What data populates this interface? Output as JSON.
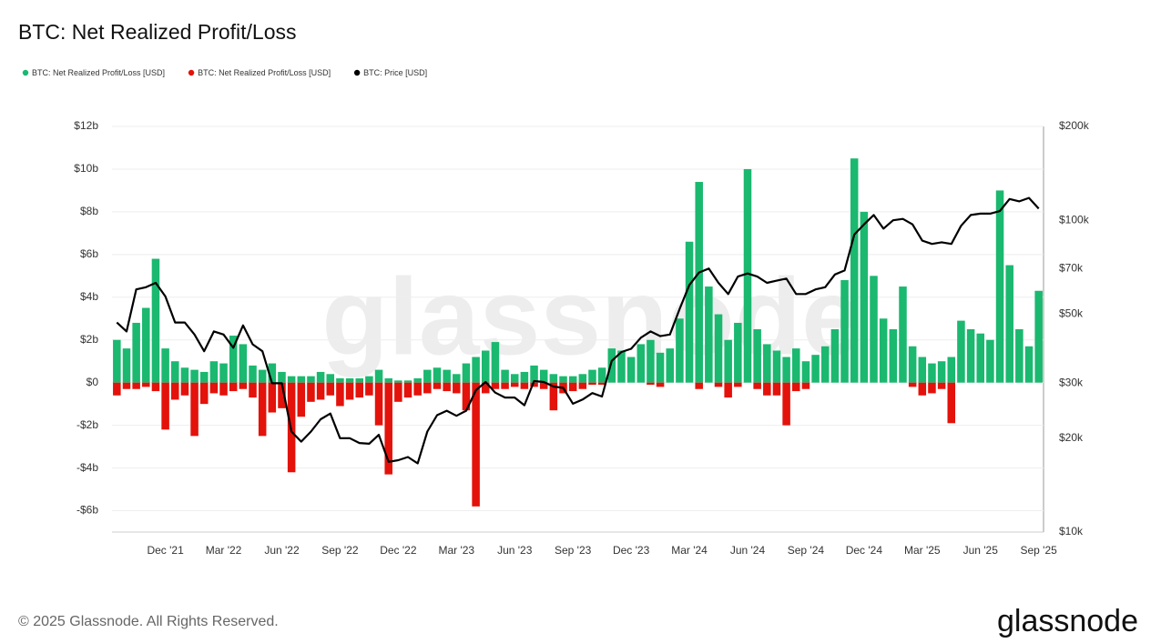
{
  "chart_data": {
    "type": "bar",
    "title": "BTC: Net Realized Profit/Loss",
    "footer": "© 2025 Glassnode. All Rights Reserved.",
    "brand": "glassnode",
    "categories": [
      null,
      null,
      null,
      null,
      null,
      "Dec '21",
      null,
      null,
      null,
      null,
      null,
      "Mar '22",
      null,
      null,
      null,
      null,
      null,
      "Jun '22",
      null,
      null,
      null,
      null,
      null,
      "Sep '22",
      null,
      null,
      null,
      null,
      null,
      "Dec '22",
      null,
      null,
      null,
      null,
      null,
      "Mar '23",
      null,
      null,
      null,
      null,
      null,
      "Jun '23",
      null,
      null,
      null,
      null,
      null,
      "Sep '23",
      null,
      null,
      null,
      null,
      null,
      "Dec '23",
      null,
      null,
      null,
      null,
      null,
      "Mar '24",
      null,
      null,
      null,
      null,
      null,
      "Jun '24",
      null,
      null,
      null,
      null,
      null,
      "Sep '24",
      null,
      null,
      null,
      null,
      null,
      "Dec '24",
      null,
      null,
      null,
      null,
      null,
      "Mar '25",
      null,
      null,
      null,
      null,
      null,
      "Jun '25",
      null,
      null,
      null,
      null,
      null,
      "Sep '25"
    ],
    "series": [
      {
        "name": "BTC: Net Realized Profit/Loss [USD]",
        "color": "#1bb870",
        "values": [
          2000000000.0,
          1600000000.0,
          2800000000.0,
          3500000000.0,
          5800000000.0,
          1600000000.0,
          1000000000.0,
          700000000.0,
          600000000.0,
          500000000.0,
          1000000000.0,
          900000000.0,
          2200000000.0,
          1800000000.0,
          800000000.0,
          600000000.0,
          900000000.0,
          500000000.0,
          300000000.0,
          300000000.0,
          300000000.0,
          500000000.0,
          400000000.0,
          200000000.0,
          200000000.0,
          200000000.0,
          300000000.0,
          600000000.0,
          200000000.0,
          100000000.0,
          100000000.0,
          200000000.0,
          600000000.0,
          700000000.0,
          600000000.0,
          400000000.0,
          900000000.0,
          1200000000.0,
          1500000000.0,
          1900000000.0,
          600000000.0,
          400000000.0,
          500000000.0,
          800000000.0,
          600000000.0,
          400000000.0,
          300000000.0,
          300000000.0,
          400000000.0,
          600000000.0,
          700000000.0,
          1600000000.0,
          1500000000.0,
          1200000000.0,
          1800000000.0,
          2000000000.0,
          1400000000.0,
          1600000000.0,
          3000000000.0,
          6600000000.0,
          9400000000.0,
          4500000000.0,
          3200000000.0,
          2000000000.0,
          2800000000.0,
          10000000000.0,
          2500000000.0,
          1800000000.0,
          1500000000.0,
          1200000000.0,
          1600000000.0,
          1000000000.0,
          1300000000.0,
          1700000000.0,
          2500000000.0,
          4800000000.0,
          10500000000.0,
          8000000000.0,
          5000000000.0,
          3000000000.0,
          2500000000.0,
          4500000000.0,
          1700000000.0,
          1200000000.0,
          900000000.0,
          1000000000.0,
          1200000000.0,
          2900000000.0,
          2500000000.0,
          2300000000.0,
          2000000000.0,
          9000000000.0,
          5500000000.0,
          2500000000.0,
          1700000000.0,
          4300000000.0
        ]
      },
      {
        "name": "BTC: Net Realized Profit/Loss [USD]",
        "color": "#e3120b",
        "values": [
          -600000000.0,
          -300000000.0,
          -300000000.0,
          -200000000.0,
          -400000000.0,
          -2200000000.0,
          -800000000.0,
          -600000000.0,
          -2500000000.0,
          -1000000000.0,
          -500000000.0,
          -600000000.0,
          -400000000.0,
          -300000000.0,
          -700000000.0,
          -2500000000.0,
          -1400000000.0,
          -1200000000.0,
          -4200000000.0,
          -1600000000.0,
          -900000000.0,
          -800000000.0,
          -600000000.0,
          -1100000000.0,
          -800000000.0,
          -700000000.0,
          -600000000.0,
          -2000000000.0,
          -4300000000.0,
          -900000000.0,
          -700000000.0,
          -600000000.0,
          -500000000.0,
          -300000000.0,
          -400000000.0,
          -500000000.0,
          -1300000000.0,
          -5800000000.0,
          -500000000.0,
          -300000000.0,
          -300000000.0,
          -200000000.0,
          -300000000.0,
          -200000000.0,
          -300000000.0,
          -1300000000.0,
          -500000000.0,
          -400000000.0,
          -300000000.0,
          -100000000.0,
          -100000000.0,
          null,
          null,
          null,
          null,
          -100000000.0,
          -200000000.0,
          null,
          null,
          null,
          -300000000.0,
          null,
          -200000000.0,
          -700000000.0,
          -200000000.0,
          null,
          -300000000.0,
          -600000000.0,
          -600000000.0,
          -2000000000.0,
          -400000000.0,
          -300000000.0,
          null,
          null,
          null,
          null,
          null,
          null,
          null,
          null,
          null,
          null,
          -200000000.0,
          -600000000.0,
          -500000000.0,
          -300000000.0,
          -1900000000.0,
          null,
          null,
          null,
          null,
          null,
          null,
          null,
          null,
          null
        ]
      },
      {
        "name": "BTC: Price [USD]",
        "color": "#000000",
        "axis": "y2",
        "type": "line",
        "values": [
          47000,
          44000,
          60000,
          61000,
          63000,
          57000,
          47000,
          47000,
          43000,
          38000,
          44000,
          43000,
          39000,
          46000,
          40000,
          38000,
          30000,
          30000,
          21000,
          19500,
          21000,
          23000,
          24000,
          20000,
          20000,
          19300,
          19200,
          20500,
          16800,
          17000,
          17400,
          16600,
          21000,
          23700,
          24500,
          23600,
          24500,
          28500,
          30300,
          28000,
          27000,
          27000,
          25500,
          30500,
          30300,
          29300,
          29000,
          25800,
          26600,
          27900,
          27200,
          35400,
          37800,
          38700,
          42000,
          44000,
          42500,
          43000,
          52000,
          62000,
          68000,
          70000,
          63000,
          58000,
          66000,
          67500,
          66000,
          63000,
          64000,
          65000,
          58000,
          58000,
          60000,
          61000,
          67000,
          69000,
          90000,
          97000,
          104000,
          94000,
          100000,
          101000,
          97000,
          86000,
          84000,
          85000,
          84000,
          96000,
          104000,
          105000,
          105000,
          107000,
          117000,
          115000,
          118000,
          109000
        ]
      }
    ],
    "ylim": [
      -7000000000.0,
      12000000000.0
    ],
    "yticks": [
      {
        "value": -6000000000.0,
        "label": "-$6b"
      },
      {
        "value": -4000000000.0,
        "label": "-$4b"
      },
      {
        "value": -2000000000.0,
        "label": "-$2b"
      },
      {
        "value": 0,
        "label": "$0"
      },
      {
        "value": 2000000000.0,
        "label": "$2b"
      },
      {
        "value": 4000000000.0,
        "label": "$4b"
      },
      {
        "value": 6000000000.0,
        "label": "$6b"
      },
      {
        "value": 8000000000.0,
        "label": "$8b"
      },
      {
        "value": 10000000000.0,
        "label": "$10b"
      },
      {
        "value": 12000000000.0,
        "label": "$12b"
      }
    ],
    "y2lim": [
      10000,
      200000
    ],
    "y2log": true,
    "y2ticks": [
      {
        "value": 10000,
        "label": "$10k"
      },
      {
        "value": 20000,
        "label": "$20k"
      },
      {
        "value": 30000,
        "label": "$30k"
      },
      {
        "value": 50000,
        "label": "$50k"
      },
      {
        "value": 70000,
        "label": "$70k"
      },
      {
        "value": 100000,
        "label": "$100k"
      },
      {
        "value": 200000,
        "label": "$200k"
      }
    ],
    "grid": true
  }
}
